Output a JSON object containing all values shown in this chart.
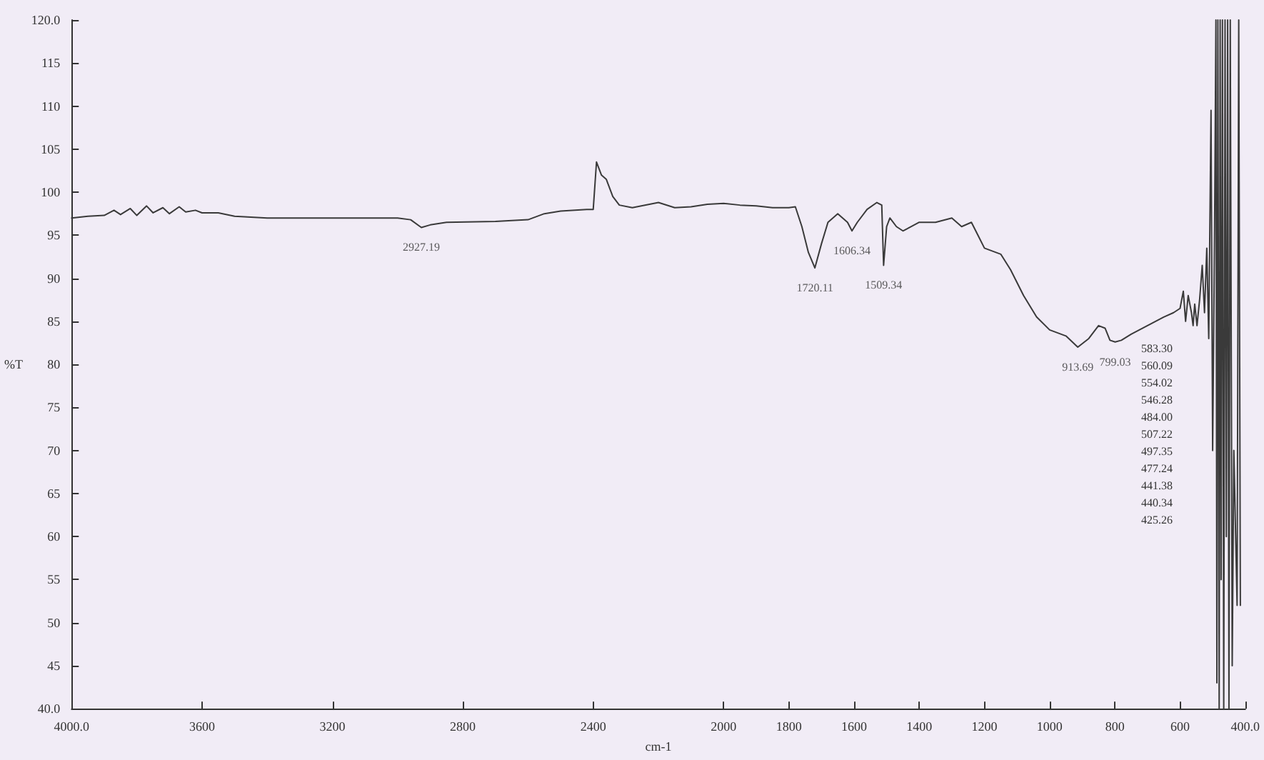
{
  "chart_data": {
    "type": "line",
    "xlabel": "cm-1",
    "ylabel": "%T",
    "grid": false,
    "marker": "none",
    "line_style": "solid",
    "xlim": [
      4000,
      400
    ],
    "xticks": [
      {
        "value": 4000,
        "label": "4000.0"
      },
      3600,
      3200,
      2800,
      2400,
      2000,
      1800,
      1600,
      1400,
      1200,
      1000,
      800,
      600,
      {
        "value": 400,
        "label": "400.0"
      }
    ],
    "ylim": [
      40,
      120
    ],
    "yticks": [
      {
        "value": 40,
        "label": "40.0"
      },
      45,
      50,
      55,
      60,
      65,
      70,
      75,
      80,
      85,
      90,
      95,
      100,
      105,
      110,
      115,
      {
        "value": 120,
        "label": "120.0"
      }
    ],
    "series": [
      {
        "color": "#3a3a3a",
        "x": [
          4000,
          3950,
          3900,
          3870,
          3850,
          3820,
          3800,
          3770,
          3750,
          3720,
          3700,
          3670,
          3650,
          3620,
          3600,
          3550,
          3500,
          3400,
          3300,
          3200,
          3100,
          3000,
          2960,
          2927.19,
          2900,
          2850,
          2700,
          2600,
          2550,
          2500,
          2420,
          2400,
          2390,
          2375,
          2360,
          2340,
          2320,
          2280,
          2200,
          2150,
          2100,
          2050,
          2000,
          1950,
          1900,
          1850,
          1800,
          1780,
          1760,
          1740,
          1720.11,
          1700,
          1680,
          1650,
          1620,
          1606.34,
          1590,
          1560,
          1530,
          1515,
          1509.34,
          1500,
          1490,
          1470,
          1450,
          1400,
          1350,
          1300,
          1270,
          1240,
          1220,
          1200,
          1150,
          1120,
          1080,
          1040,
          1000,
          950,
          913.69,
          880,
          850,
          830,
          815,
          799.03,
          780,
          750,
          700,
          650,
          620,
          600,
          590,
          583,
          575,
          565,
          560,
          555,
          548,
          540,
          532,
          525,
          518,
          512,
          505,
          500,
          494,
          490,
          487,
          484,
          480,
          477,
          474,
          470,
          466,
          462,
          458,
          454,
          450,
          446,
          440,
          435,
          425,
          420,
          415
        ],
        "values": [
          97,
          97.2,
          97.3,
          97.9,
          97.4,
          98.1,
          97.3,
          98.4,
          97.6,
          98.2,
          97.5,
          98.3,
          97.7,
          97.9,
          97.6,
          97.6,
          97.2,
          97,
          97,
          97,
          97,
          97,
          96.8,
          95.9,
          96.2,
          96.5,
          96.6,
          96.8,
          97.5,
          97.8,
          98,
          98,
          103.5,
          102,
          101.5,
          99.5,
          98.5,
          98.2,
          98.8,
          98.2,
          98.3,
          98.6,
          98.7,
          98.5,
          98.4,
          98.2,
          98.2,
          98.3,
          96,
          93,
          91.2,
          94,
          96.5,
          97.5,
          96.5,
          95.5,
          96.5,
          98,
          98.8,
          98.5,
          91.5,
          96,
          97,
          96,
          95.5,
          96.5,
          96.5,
          97,
          96,
          96.5,
          95,
          93.5,
          92.8,
          91,
          88,
          85.5,
          84,
          83.3,
          82,
          83,
          84.5,
          84.2,
          82.8,
          82.6,
          82.8,
          83.5,
          84.5,
          85.5,
          86,
          86.5,
          88.5,
          85,
          88,
          86,
          84.5,
          87,
          84.5,
          87.5,
          91.5,
          86,
          93.5,
          83,
          109.5,
          70,
          96,
          120,
          43,
          120,
          40,
          120,
          55,
          120,
          40,
          120,
          60,
          120,
          40,
          120,
          45,
          70,
          52,
          120,
          52
        ]
      }
    ],
    "annotations": [
      {
        "text": "2927.19",
        "x": 2927.19,
        "y": 95.9
      },
      {
        "text": "1720.11",
        "x": 1720.11,
        "y": 91.2
      },
      {
        "text": "1606.34",
        "x": 1606.34,
        "y": 95.5
      },
      {
        "text": "1509.34",
        "x": 1509.34,
        "y": 91.5
      },
      {
        "text": "913.69",
        "x": 913.69,
        "y": 82
      },
      {
        "text": "799.03",
        "x": 799.03,
        "y": 82.6
      },
      "583.30",
      "560.09",
      "554.02",
      "546.28",
      "484.00",
      "507.22",
      "497.35",
      "477.24",
      "441.38",
      "440.34",
      "425.26"
    ]
  }
}
